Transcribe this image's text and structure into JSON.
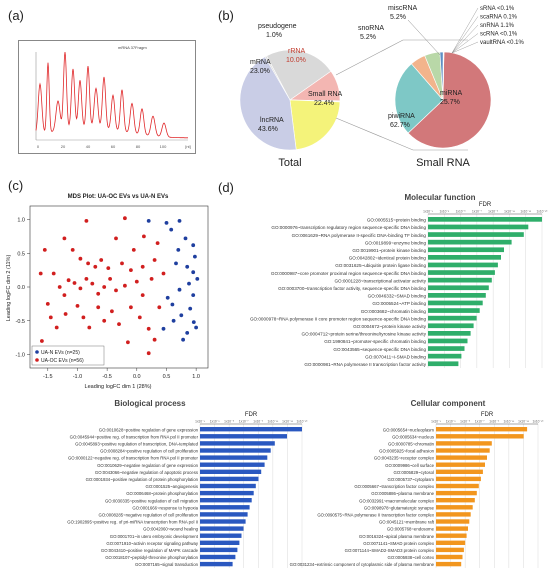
{
  "panels": {
    "a": "(a)",
    "b": "(b)",
    "c": "(c)",
    "d": "(d)"
  },
  "trace_title": "mRNA 37Fragm",
  "trace_axis": [
    "0",
    "20",
    "40",
    "60",
    "80",
    "100",
    "[nt]"
  ],
  "pie_titles": {
    "total": "Total",
    "small": "Small RNA"
  },
  "chart_data": [
    {
      "type": "pie",
      "title": "Total",
      "slices": [
        {
          "label": "pseudogene",
          "value": 1.0,
          "display": "1.0%",
          "color": "#dcdcdc"
        },
        {
          "label": "mRNA",
          "value": 23.0,
          "display": "23.0%",
          "color": "#d9d9d9"
        },
        {
          "label": "rRNA",
          "value": 10.0,
          "display": "10.0%",
          "color": "#f3b6b2"
        },
        {
          "label": "miscRNA",
          "value": 0.0,
          "display": "",
          "color": "#4a4a4a"
        },
        {
          "label": "snoRNA",
          "value": 0.0,
          "display": "",
          "color": "#7ecfc0"
        },
        {
          "label": "Small RNA",
          "value": 22.4,
          "display": "22.4%",
          "color": "#f4f37a"
        },
        {
          "label": "lncRNA",
          "value": 43.6,
          "display": "43.6%",
          "color": "#c9cde6"
        }
      ]
    },
    {
      "type": "pie",
      "title": "Small RNA",
      "slices": [
        {
          "label": "piwiRNA",
          "value": 62.7,
          "display": "62.7%",
          "color": "#d2787a"
        },
        {
          "label": "miRNA",
          "value": 25.7,
          "display": "25.7%",
          "color": "#7ec8c6"
        },
        {
          "label": "miscRNA",
          "value": 5.2,
          "display": "5.2%",
          "color": "#f2b48c"
        },
        {
          "label": "snoRNA",
          "value": 5.2,
          "display": "5.2%",
          "color": "#b9d8a8"
        },
        {
          "label": "snRNA",
          "value": 1.1,
          "display": "1.1%",
          "color": "#5e8fc4"
        },
        {
          "label": "sRNA",
          "value": 0.05,
          "display": "<0.1%",
          "color": "#cccccc"
        },
        {
          "label": "scaRNA",
          "value": 0.1,
          "display": "0.1%",
          "color": "#a3a3a3"
        },
        {
          "label": "scRNA",
          "value": 0.05,
          "display": "<0.1%",
          "color": "#8f8f8f"
        },
        {
          "label": "vaultRNA",
          "value": 0.05,
          "display": "<0.1%",
          "color": "#777777"
        }
      ],
      "outer_labels": [
        "sRNA <0.1%",
        "scaRNA 0.1%",
        "snRNA 1.1%",
        "scRNA <0.1%",
        "vaultRNA <0.1%"
      ]
    },
    {
      "type": "scatter",
      "title": "MDS Plot:  UA-OC EVs vs UA-N EVs",
      "xlabel": "Leading logFC dim 1 (28%)",
      "ylabel": "Leading logFC dim 2 (11%)",
      "xlim": [
        -1.8,
        1.2
      ],
      "ylim": [
        -1.2,
        1.2
      ],
      "xticks": [
        "-1.5",
        "-1.0",
        "-0.5",
        "0.0",
        "0.5",
        "1.0"
      ],
      "yticks": [
        "-1.0",
        "-0.5",
        "0.0",
        "0.5",
        "1.0"
      ],
      "legend": [
        {
          "label": "UA-N EVs (n=25)",
          "color": "#1f3f9f"
        },
        {
          "label": "UA-OC EVs (n=56)",
          "color": "#d11f1f"
        }
      ],
      "series": [
        {
          "name": "UA-N EVs (n=25)",
          "color": "#1f3f9f",
          "points": [
            [
              0.2,
              0.98
            ],
            [
              0.5,
              0.95
            ],
            [
              0.72,
              0.98
            ],
            [
              0.58,
              0.85
            ],
            [
              0.82,
              0.72
            ],
            [
              0.95,
              0.62
            ],
            [
              0.66,
              0.35
            ],
            [
              0.85,
              0.3
            ],
            [
              0.95,
              0.22
            ],
            [
              1.02,
              0.12
            ],
            [
              0.88,
              0.05
            ],
            [
              0.72,
              -0.04
            ],
            [
              0.95,
              -0.12
            ],
            [
              0.52,
              -0.16
            ],
            [
              0.6,
              -0.26
            ],
            [
              0.9,
              -0.32
            ],
            [
              0.75,
              -0.42
            ],
            [
              0.96,
              -0.52
            ],
            [
              0.62,
              -0.5
            ],
            [
              1.0,
              -0.6
            ],
            [
              0.85,
              -0.68
            ],
            [
              0.45,
              -0.62
            ],
            [
              0.78,
              -0.78
            ],
            [
              0.7,
              0.55
            ],
            [
              0.98,
              0.45
            ]
          ]
        },
        {
          "name": "UA-OC EVs (n=56)",
          "color": "#d11f1f",
          "points": [
            [
              -1.55,
              0.55
            ],
            [
              -1.22,
              0.72
            ],
            [
              -0.85,
              0.98
            ],
            [
              -0.35,
              0.72
            ],
            [
              0.12,
              0.75
            ],
            [
              -1.08,
              0.55
            ],
            [
              -0.95,
              0.42
            ],
            [
              -0.82,
              0.35
            ],
            [
              -0.7,
              0.3
            ],
            [
              -0.6,
              0.4
            ],
            [
              -0.48,
              0.28
            ],
            [
              -0.25,
              0.35
            ],
            [
              -0.1,
              0.25
            ],
            [
              0.1,
              0.3
            ],
            [
              0.3,
              0.4
            ],
            [
              -1.4,
              0.2
            ],
            [
              -1.3,
              0.0
            ],
            [
              -1.22,
              -0.12
            ],
            [
              -1.15,
              0.1
            ],
            [
              -1.05,
              0.06
            ],
            [
              -0.95,
              -0.02
            ],
            [
              -0.85,
              0.12
            ],
            [
              -0.75,
              0.05
            ],
            [
              -0.65,
              -0.1
            ],
            [
              -0.55,
              0.0
            ],
            [
              -0.45,
              0.12
            ],
            [
              -0.35,
              -0.05
            ],
            [
              -0.2,
              0.02
            ],
            [
              0.0,
              0.08
            ],
            [
              0.25,
              0.12
            ],
            [
              0.45,
              0.2
            ],
            [
              -1.5,
              -0.25
            ],
            [
              -1.45,
              -0.45
            ],
            [
              -1.35,
              -0.6
            ],
            [
              -1.2,
              -0.4
            ],
            [
              -1.0,
              -0.28
            ],
            [
              -0.9,
              -0.45
            ],
            [
              -0.8,
              -0.6
            ],
            [
              -0.65,
              -0.3
            ],
            [
              -0.55,
              -0.5
            ],
            [
              -0.42,
              -0.36
            ],
            [
              -0.3,
              -0.55
            ],
            [
              -0.1,
              -0.3
            ],
            [
              0.05,
              -0.45
            ],
            [
              0.2,
              -0.62
            ],
            [
              -1.6,
              -0.8
            ],
            [
              -0.8,
              -0.95
            ],
            [
              -0.15,
              -0.82
            ],
            [
              0.3,
              -0.78
            ],
            [
              -0.2,
              1.02
            ],
            [
              0.35,
              0.65
            ],
            [
              0.38,
              -0.3
            ],
            [
              -1.62,
              0.2
            ],
            [
              0.1,
              -0.12
            ],
            [
              -0.05,
              0.55
            ],
            [
              0.2,
              -0.98
            ]
          ]
        }
      ]
    },
    {
      "type": "bar",
      "title": "Molecular function",
      "xlabel": "FDR",
      "orientation": "horizontal",
      "xticks": [
        "1x10⁻¹",
        "1x10⁻³",
        "1x10⁻⁵",
        "1x10⁻⁷",
        "1x10⁻⁹",
        "1x10⁻¹¹",
        "1x10⁻¹³",
        "1x10⁻¹⁵"
      ],
      "color": "#2fae6a",
      "categories": [
        "GO:0005515~protein binding",
        "GO:0000976~transcription regulatory region sequence-specific DNA binding",
        "GO:0061629~RNA polymerase II-specific DNA-binding TF binding",
        "GO:0019899~enzyme binding",
        "GO:0019901~protein kinase binding",
        "GO:0042802~identical protein binding",
        "GO:0031625~ubiquitin protein ligase binding",
        "GO:0000987~core promoter proximal region sequence-specific DNA binding",
        "GO:0001228~transcriptional activator activity",
        "GO:0003700~transcription factor activity, sequence-specific DNA binding",
        "GO:0046332~SMAD binding",
        "GO:0005524~ATP binding",
        "GO:0003682~chromatin binding",
        "GO:0000978~RNA polymerase II core promoter region sequence-specific DNA binding",
        "GO:0004672~protein kinase activity",
        "GO:0004712~protein serine/threonine/tyrosine kinase activity",
        "GO:1990841~promoter-specific chromatin binding",
        "GO:0043565~sequence-specific DNA binding",
        "GO:0070411~I-SMAD binding",
        "GO:0000981~RNA polymerase II transcription factor activity"
      ],
      "values": [
        15.0,
        13.2,
        12.6,
        11.0,
        10.0,
        9.6,
        9.2,
        8.8,
        8.4,
        8.0,
        7.6,
        7.2,
        6.8,
        6.4,
        6.0,
        5.6,
        5.2,
        4.8,
        4.4,
        4.0
      ]
    },
    {
      "type": "bar",
      "title": "Biological process",
      "xlabel": "FDR",
      "orientation": "horizontal",
      "xticks": [
        "1x10⁻¹",
        "1x10⁻³",
        "1x10⁻⁵",
        "1x10⁻⁷",
        "1x10⁻⁹",
        "1x10⁻¹¹",
        "1x10⁻¹³",
        "1x10⁻¹⁵"
      ],
      "color": "#2a58c0",
      "categories": [
        "GO:0010628~positive regulation of gene expression",
        "GO:0045944~positive reg. of transcription from RNA pol II promoter",
        "GO:0045893~positive regulation of transcription, DNA-templated",
        "GO:0008284~positive regulation of cell proliferation",
        "GO:0000122~negative reg. of transcription from RNA pol II promoter",
        "GO:0010629~negative regulation of gene expression",
        "GO:0043066~negative regulation of apoptotic process",
        "GO:0001934~positive regulation of protein phosphorylation",
        "GO:0001525~angiogenesis",
        "GO:0006468~protein phosphorylation",
        "GO:0030335~positive regulation of cell migration",
        "GO:0001666~response to hypoxia",
        "GO:0008285~negative regulation of cell proliferation",
        "GO:1902895~positive reg. of pri-miRNA transcription from RNA pol II",
        "GO:0042060~wound healing",
        "GO:0001701~in utero embryonic development",
        "GO:0071910~activin receptor signaling pathway",
        "GO:0043410~positive regulation of MAPK cascade",
        "GO:0018107~peptidyl-threonine phosphorylation",
        "GO:0007165~signal transduction"
      ],
      "values": [
        15.0,
        12.8,
        11.0,
        10.4,
        9.9,
        9.5,
        9.0,
        8.6,
        8.2,
        7.9,
        7.6,
        7.3,
        7.0,
        6.7,
        6.4,
        6.1,
        5.8,
        5.5,
        5.2,
        4.8
      ]
    },
    {
      "type": "bar",
      "title": "Cellular component",
      "xlabel": "FDR",
      "orientation": "horizontal",
      "xticks": [
        "1x10⁻¹",
        "1x10⁻³",
        "1x10⁻⁵",
        "1x10⁻⁷",
        "1x10⁻⁹",
        "1x10⁻¹¹",
        "1x10⁻¹³",
        "1x10⁻¹⁵"
      ],
      "color": "#f2961e",
      "categories": [
        "GO:0005654~nucleoplasm",
        "GO:0005634~nucleus",
        "GO:0000785~chromatin",
        "GO:0005925~focal adhesion",
        "GO:0043235~receptor complex",
        "GO:0009986~cell surface",
        "GO:0005829~cytosol",
        "GO:0005737~cytoplasm",
        "GO:0005667~transcription factor complex",
        "GO:0005886~plasma membrane",
        "GO:0032991~macromolecular complex",
        "GO:0098978~glutamatergic synapse",
        "GO:0090575~RNA polymerase II transcription factor complex",
        "GO:0045121~membrane raft",
        "GO:0005768~endosome",
        "GO:0016324~apical plasma membrane",
        "GO:0071141~SMAD protein complex",
        "GO:0071144~SMAD2-SMAD3 protein complex",
        "GO:0005938~cell cortex",
        "GO:0031234~extrinsic component of cytoplasmic side of plasma membrane"
      ],
      "values": [
        13.4,
        12.9,
        8.2,
        7.9,
        7.5,
        7.2,
        6.9,
        6.6,
        6.3,
        6.0,
        5.7,
        5.4,
        5.1,
        4.9,
        4.7,
        4.5,
        4.3,
        4.1,
        3.9,
        3.7
      ]
    }
  ]
}
